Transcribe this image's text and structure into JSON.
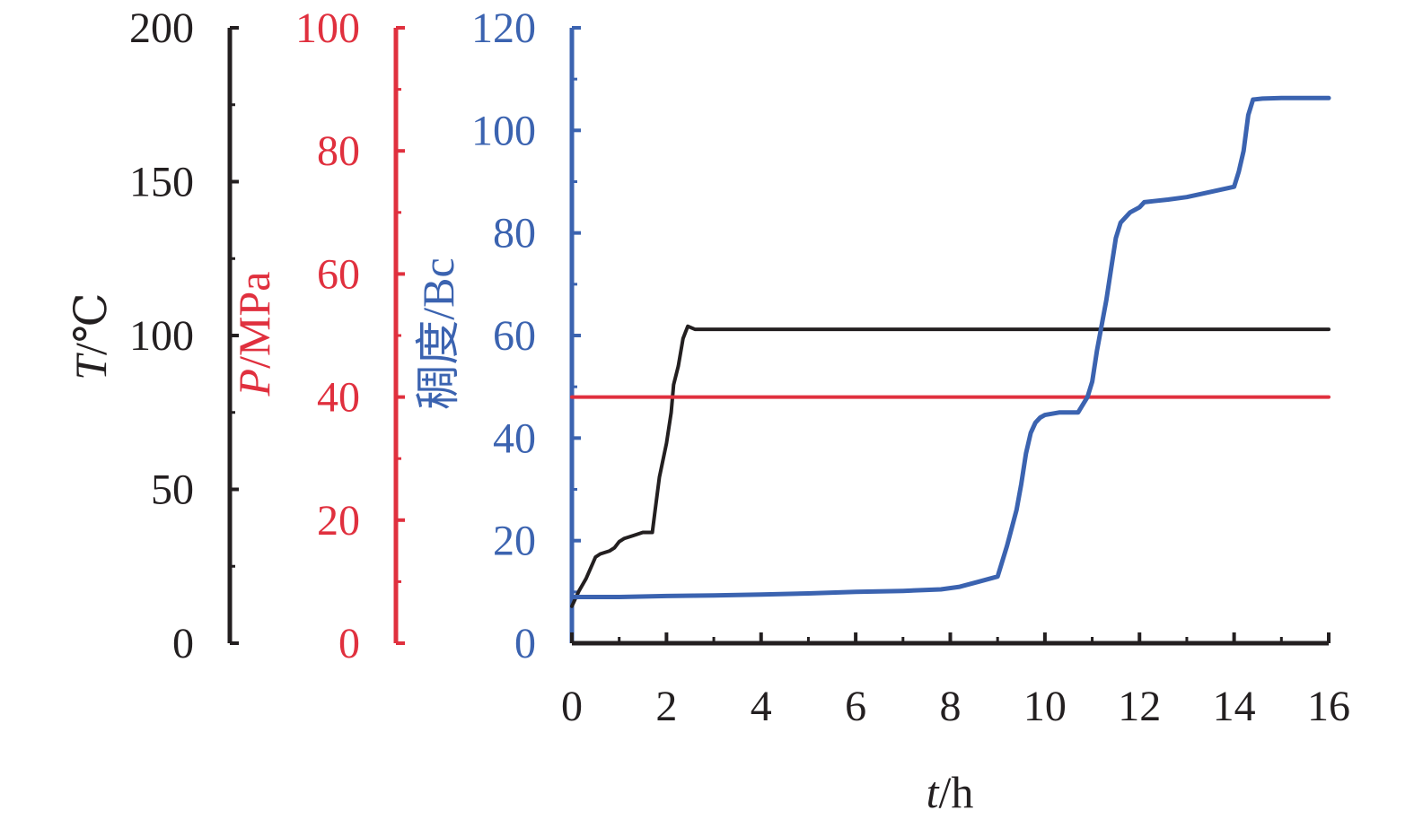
{
  "chart_data": {
    "type": "line",
    "x_axis": {
      "label_var": "t",
      "label_unit": "/h",
      "range": [
        0,
        16
      ],
      "ticks": [
        0,
        2,
        4,
        6,
        8,
        10,
        12,
        14,
        16
      ]
    },
    "y_axes": [
      {
        "id": "T",
        "label_var": "T",
        "label_unit": "/℃",
        "color": "#231f20",
        "range": [
          0,
          200
        ],
        "ticks": [
          0,
          50,
          100,
          150,
          200
        ]
      },
      {
        "id": "P",
        "label_var": "P",
        "label_unit": "/MPa",
        "color": "#e0303e",
        "range": [
          0,
          100
        ],
        "ticks": [
          0,
          20,
          40,
          60,
          80,
          100
        ]
      },
      {
        "id": "Bc",
        "label_text": "稠度/Bc",
        "color": "#3b63b0",
        "range": [
          0,
          120
        ],
        "ticks": [
          0,
          20,
          40,
          60,
          80,
          100,
          120
        ]
      }
    ],
    "series": [
      {
        "axis": "T",
        "color": "#231f20",
        "x": [
          0,
          0.15,
          0.3,
          0.5,
          0.6,
          0.8,
          0.9,
          1.0,
          1.1,
          1.3,
          1.5,
          1.6,
          1.7,
          1.75,
          1.85,
          2.0,
          2.1,
          2.15,
          2.25,
          2.35,
          2.45,
          2.6,
          4,
          6,
          8,
          10,
          12,
          14,
          16
        ],
        "y": [
          12,
          17,
          21,
          28,
          29,
          30,
          31,
          33,
          34,
          35,
          36,
          36,
          36,
          42,
          54,
          65,
          75,
          84,
          90,
          99,
          103,
          102,
          102,
          102,
          102,
          102,
          102,
          102,
          102
        ]
      },
      {
        "axis": "P",
        "color": "#e0303e",
        "x": [
          0,
          16
        ],
        "y": [
          40,
          40
        ]
      },
      {
        "axis": "Bc",
        "color": "#3b63b0",
        "x": [
          0,
          1,
          2,
          3,
          4,
          5,
          6,
          7,
          7.8,
          8.2,
          8.6,
          9.0,
          9.2,
          9.4,
          9.5,
          9.6,
          9.7,
          9.8,
          9.9,
          10.0,
          10.3,
          10.7,
          10.9,
          11.0,
          11.1,
          11.2,
          11.3,
          11.4,
          11.5,
          11.6,
          11.8,
          12.0,
          12.1,
          12.3,
          12.6,
          13.0,
          13.5,
          14.0,
          14.1,
          14.2,
          14.3,
          14.4,
          14.6,
          15,
          15.5,
          16
        ],
        "y": [
          9,
          9,
          9.2,
          9.3,
          9.5,
          9.7,
          10,
          10.2,
          10.5,
          11,
          12,
          13,
          19,
          26,
          31,
          37,
          41,
          43,
          44,
          44.5,
          45,
          45,
          48,
          51,
          57,
          62,
          67,
          73,
          79,
          82,
          84,
          85,
          86,
          86.2,
          86.5,
          87,
          88,
          89,
          92,
          96,
          103,
          106,
          106.2,
          106.3,
          106.3,
          106.3
        ]
      }
    ]
  }
}
